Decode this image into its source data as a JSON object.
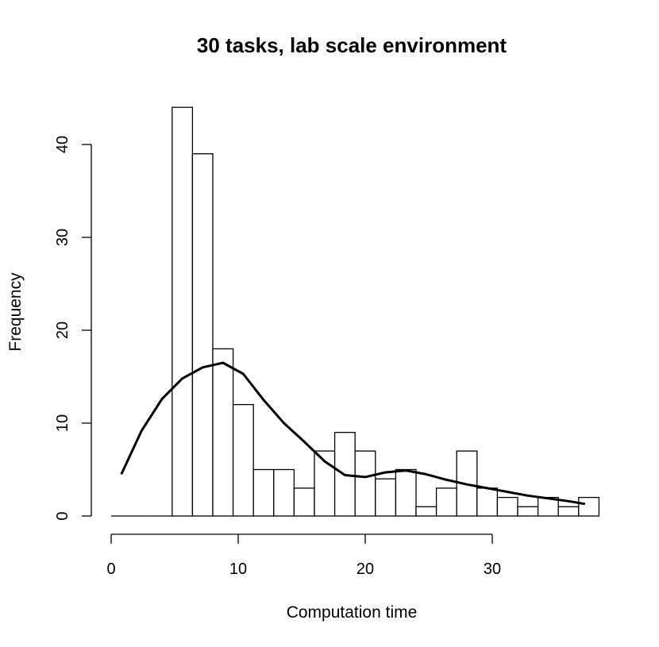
{
  "chart_data": {
    "type": "bar",
    "subtype": "histogram-with-density-curve",
    "title": "30 tasks, lab scale environment",
    "xlabel": "Computation time",
    "ylabel": "Frequency",
    "xlim": [
      0,
      38
    ],
    "ylim": [
      0,
      44
    ],
    "x_ticks": [
      0,
      10,
      20,
      30
    ],
    "y_ticks": [
      0,
      10,
      20,
      30,
      40
    ],
    "bin_width": 1.6,
    "bins": [
      {
        "start": 0.0,
        "end": 1.6,
        "count": 0
      },
      {
        "start": 1.6,
        "end": 3.2,
        "count": 0
      },
      {
        "start": 3.2,
        "end": 4.8,
        "count": 0
      },
      {
        "start": 4.8,
        "end": 6.4,
        "count": 44
      },
      {
        "start": 6.4,
        "end": 8.0,
        "count": 39
      },
      {
        "start": 8.0,
        "end": 9.6,
        "count": 18
      },
      {
        "start": 9.6,
        "end": 11.2,
        "count": 12
      },
      {
        "start": 11.2,
        "end": 12.8,
        "count": 5
      },
      {
        "start": 12.8,
        "end": 14.4,
        "count": 5
      },
      {
        "start": 14.4,
        "end": 16.0,
        "count": 3
      },
      {
        "start": 16.0,
        "end": 17.6,
        "count": 7
      },
      {
        "start": 17.6,
        "end": 19.2,
        "count": 9
      },
      {
        "start": 19.2,
        "end": 20.8,
        "count": 7
      },
      {
        "start": 20.8,
        "end": 22.4,
        "count": 4
      },
      {
        "start": 22.4,
        "end": 24.0,
        "count": 5
      },
      {
        "start": 24.0,
        "end": 25.6,
        "count": 1
      },
      {
        "start": 25.6,
        "end": 27.2,
        "count": 3
      },
      {
        "start": 27.2,
        "end": 28.8,
        "count": 7
      },
      {
        "start": 28.8,
        "end": 30.4,
        "count": 3
      },
      {
        "start": 30.4,
        "end": 32.0,
        "count": 2
      },
      {
        "start": 32.0,
        "end": 33.6,
        "count": 1
      },
      {
        "start": 33.6,
        "end": 35.2,
        "count": 2
      },
      {
        "start": 35.2,
        "end": 36.8,
        "count": 1
      },
      {
        "start": 36.8,
        "end": 38.4,
        "count": 2
      }
    ],
    "density_curve": {
      "x": [
        0.8,
        2.4,
        4.0,
        5.6,
        7.2,
        8.8,
        10.4,
        12.0,
        13.6,
        15.2,
        16.8,
        18.4,
        20.0,
        21.6,
        23.2,
        24.8,
        26.4,
        28.0,
        29.6,
        31.2,
        32.8,
        34.4,
        36.0,
        37.3
      ],
      "y": [
        4.5,
        9.2,
        12.6,
        14.8,
        16.0,
        16.5,
        15.3,
        12.5,
        10.0,
        8.0,
        5.9,
        4.4,
        4.2,
        4.7,
        4.9,
        4.5,
        3.9,
        3.4,
        3.0,
        2.6,
        2.2,
        1.9,
        1.6,
        1.3
      ]
    },
    "grid": false,
    "legend": "none"
  }
}
